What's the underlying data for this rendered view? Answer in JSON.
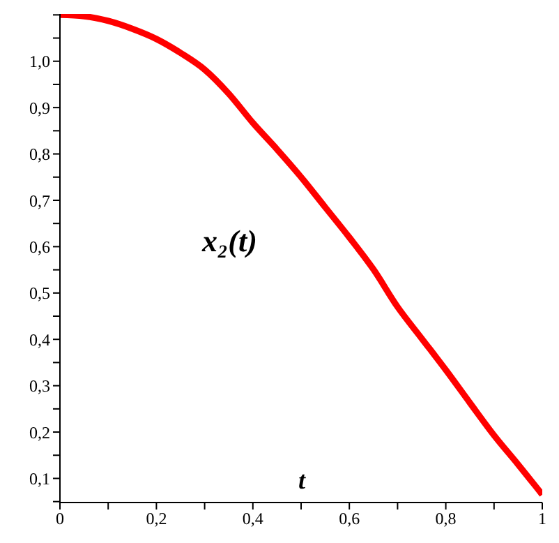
{
  "chart_data": {
    "type": "line",
    "xlabel": "t",
    "ylabel": "x₂(t)",
    "x": [
      0,
      0.05,
      0.1,
      0.15,
      0.2,
      0.25,
      0.3,
      0.35,
      0.4,
      0.45,
      0.5,
      0.55,
      0.6,
      0.65,
      0.7,
      0.75,
      0.8,
      0.85,
      0.9,
      0.95,
      1
    ],
    "series": [
      {
        "color": "#ff0000",
        "values": [
          1.1,
          1.097,
          1.087,
          1.07,
          1.048,
          1.018,
          0.982,
          0.93,
          0.867,
          0.81,
          0.75,
          0.685,
          0.62,
          0.551,
          0.47,
          0.402,
          0.334,
          0.263,
          0.193,
          0.13,
          0.065
        ]
      }
    ],
    "xlim": [
      0,
      1
    ],
    "ylim": [
      0.048,
      1.102
    ],
    "xticks": [
      {
        "value": 0,
        "label": "0"
      },
      {
        "value": 0.1,
        "label": null
      },
      {
        "value": 0.2,
        "label": "0,2"
      },
      {
        "value": 0.3,
        "label": null
      },
      {
        "value": 0.4,
        "label": "0,4"
      },
      {
        "value": 0.5,
        "label": null
      },
      {
        "value": 0.6,
        "label": "0,6"
      },
      {
        "value": 0.7,
        "label": null
      },
      {
        "value": 0.8,
        "label": "0,8"
      },
      {
        "value": 0.9,
        "label": null
      },
      {
        "value": 1,
        "label": "1"
      }
    ],
    "yticks": [
      {
        "value": 0.05,
        "label": null
      },
      {
        "value": 0.1,
        "label": "0,1"
      },
      {
        "value": 0.15,
        "label": null
      },
      {
        "value": 0.2,
        "label": "0,2"
      },
      {
        "value": 0.25,
        "label": null
      },
      {
        "value": 0.3,
        "label": "0,3"
      },
      {
        "value": 0.35,
        "label": null
      },
      {
        "value": 0.4,
        "label": "0,4"
      },
      {
        "value": 0.45,
        "label": null
      },
      {
        "value": 0.5,
        "label": "0,5"
      },
      {
        "value": 0.55,
        "label": null
      },
      {
        "value": 0.6,
        "label": "0,6"
      },
      {
        "value": 0.65,
        "label": null
      },
      {
        "value": 0.7,
        "label": "0,7"
      },
      {
        "value": 0.75,
        "label": null
      },
      {
        "value": 0.8,
        "label": "0,8"
      },
      {
        "value": 0.85,
        "label": null
      },
      {
        "value": 0.9,
        "label": "0,9"
      },
      {
        "value": 0.95,
        "label": null
      },
      {
        "value": 1,
        "label": "1,0"
      },
      {
        "value": 1.05,
        "label": null
      },
      {
        "value": 1.1,
        "label": null
      }
    ],
    "grid": false,
    "legend": false,
    "marker": "none",
    "line_style": "solid"
  }
}
